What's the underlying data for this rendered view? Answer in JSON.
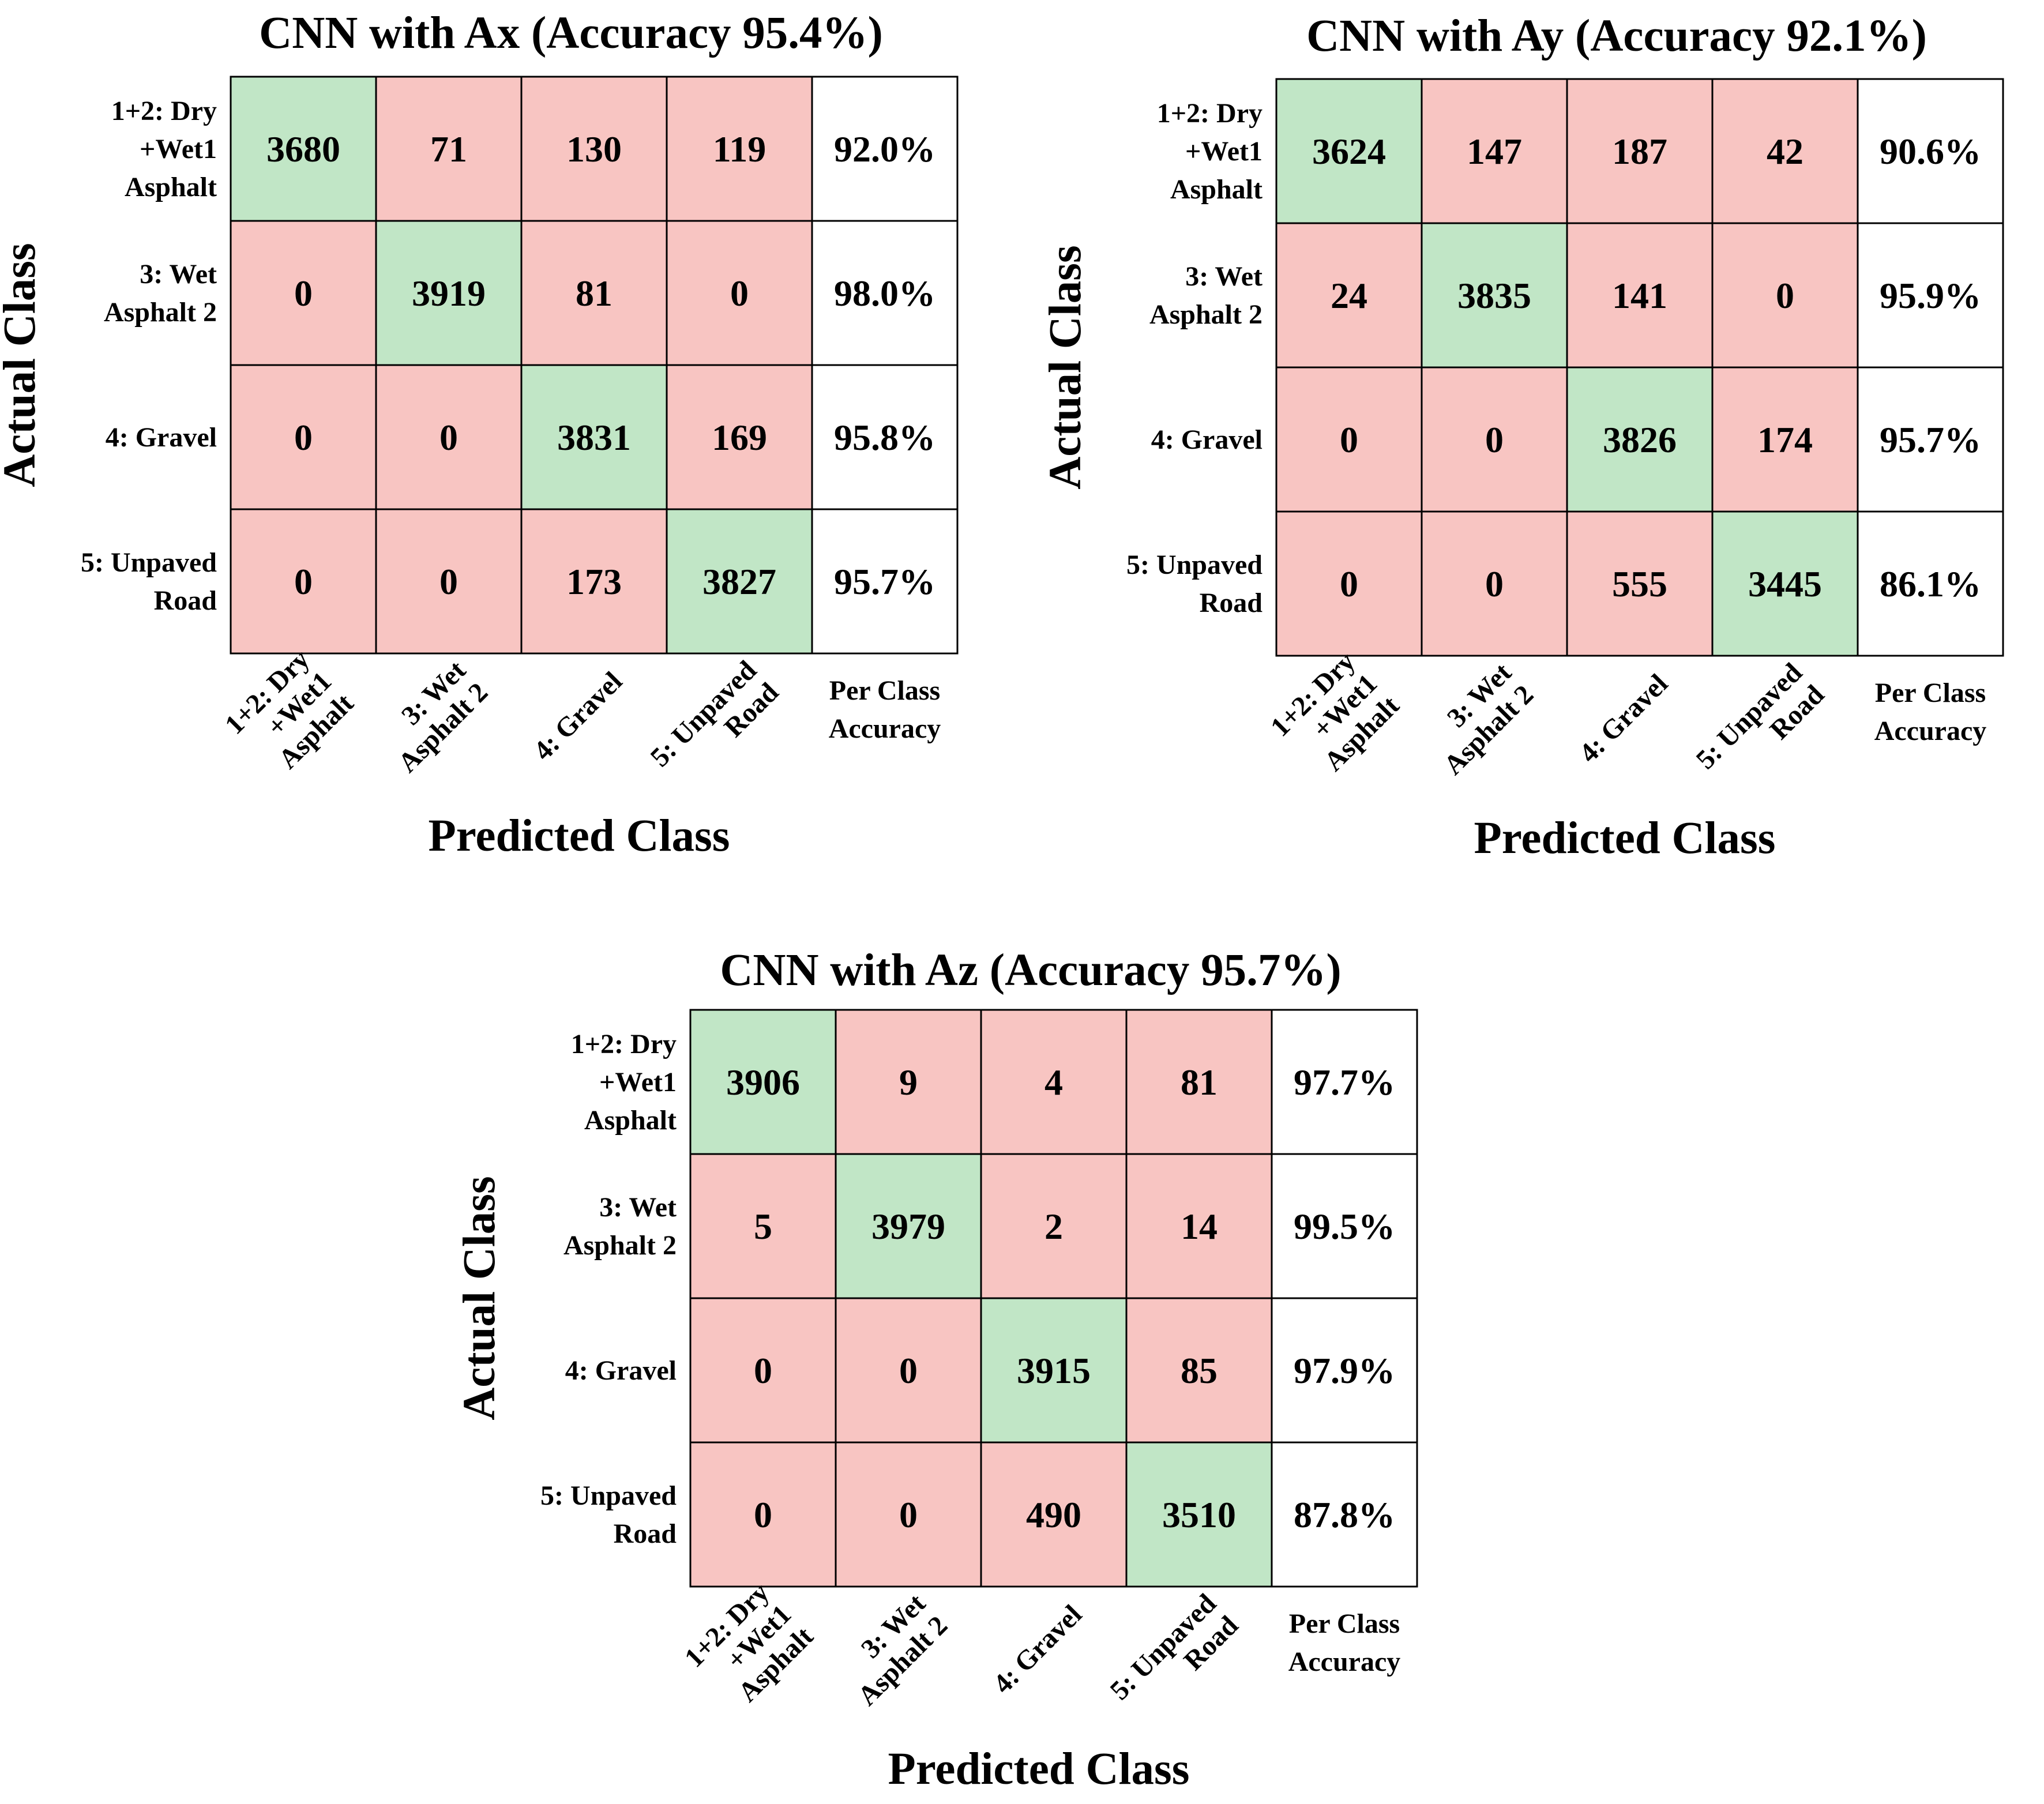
{
  "colors": {
    "correct": "#c1e6c6",
    "incorrect": "#f8c5c2",
    "accuracy": "#ffffff",
    "grid": "#000000"
  },
  "chart_data": [
    {
      "type": "heatmap",
      "title": "CNN with Ax (Accuracy 95.4%)",
      "xlabel": "Predicted Class",
      "ylabel": "Actual Class",
      "row_labels": [
        "1+2: Dry\n+Wet1\nAsphalt",
        "3: Wet\nAsphalt 2",
        "4: Gravel",
        "5: Unpaved\nRoad"
      ],
      "col_labels": [
        "1+2: Dry\n+Wet1\nAsphalt",
        "3: Wet\nAsphalt 2",
        "4: Gravel",
        "5: Unpaved\nRoad"
      ],
      "accuracy_header": "Per Class\nAccuracy",
      "matrix": [
        [
          3680,
          71,
          130,
          119
        ],
        [
          0,
          3919,
          81,
          0
        ],
        [
          0,
          0,
          3831,
          169
        ],
        [
          0,
          0,
          173,
          3827
        ]
      ],
      "per_class_accuracy": [
        "92.0%",
        "98.0%",
        "95.8%",
        "95.7%"
      ]
    },
    {
      "type": "heatmap",
      "title": "CNN with Ay (Accuracy 92.1%)",
      "xlabel": "Predicted Class",
      "ylabel": "Actual Class",
      "row_labels": [
        "1+2: Dry\n+Wet1\nAsphalt",
        "3: Wet\nAsphalt 2",
        "4: Gravel",
        "5: Unpaved\nRoad"
      ],
      "col_labels": [
        "1+2: Dry\n+Wet1\nAsphalt",
        "3: Wet\nAsphalt 2",
        "4: Gravel",
        "5: Unpaved\nRoad"
      ],
      "accuracy_header": "Per Class\nAccuracy",
      "matrix": [
        [
          3624,
          147,
          187,
          42
        ],
        [
          24,
          3835,
          141,
          0
        ],
        [
          0,
          0,
          3826,
          174
        ],
        [
          0,
          0,
          555,
          3445
        ]
      ],
      "per_class_accuracy": [
        "90.6%",
        "95.9%",
        "95.7%",
        "86.1%"
      ]
    },
    {
      "type": "heatmap",
      "title": "CNN with Az (Accuracy 95.7%)",
      "xlabel": "Predicted Class",
      "ylabel": "Actual Class",
      "row_labels": [
        "1+2: Dry\n+Wet1\nAsphalt",
        "3: Wet\nAsphalt 2",
        "4: Gravel",
        "5: Unpaved\nRoad"
      ],
      "col_labels": [
        "1+2: Dry\n+Wet1\nAsphalt",
        "3: Wet\nAsphalt 2",
        "4: Gravel",
        "5: Unpaved\nRoad"
      ],
      "accuracy_header": "Per Class\nAccuracy",
      "matrix": [
        [
          3906,
          9,
          4,
          81
        ],
        [
          5,
          3979,
          2,
          14
        ],
        [
          0,
          0,
          3915,
          85
        ],
        [
          0,
          0,
          490,
          3510
        ]
      ],
      "per_class_accuracy": [
        "97.7%",
        "99.5%",
        "97.9%",
        "87.8%"
      ]
    }
  ]
}
